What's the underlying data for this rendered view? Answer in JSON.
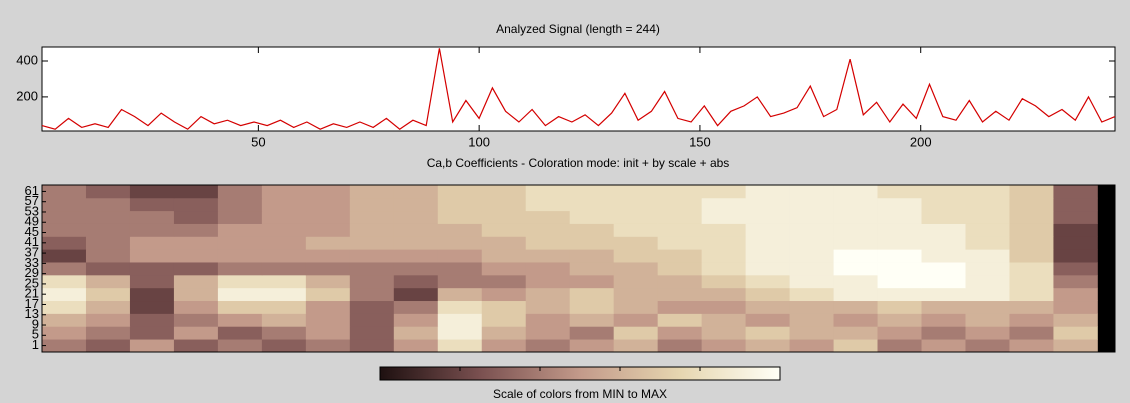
{
  "chart_data": [
    {
      "type": "line",
      "title": "Analyzed Signal  (length = 244)",
      "color": "#d40000",
      "xlim": [
        1,
        244
      ],
      "ylim": [
        10,
        478
      ],
      "xticks": [
        50,
        100,
        150,
        200
      ],
      "yticks": [
        200,
        400
      ],
      "x": [
        1,
        4,
        7,
        10,
        13,
        16,
        19,
        22,
        25,
        28,
        31,
        34,
        37,
        40,
        43,
        46,
        49,
        52,
        55,
        58,
        61,
        64,
        67,
        70,
        73,
        76,
        79,
        82,
        85,
        88,
        91,
        94,
        97,
        100,
        103,
        106,
        109,
        112,
        115,
        118,
        121,
        124,
        127,
        130,
        133,
        136,
        139,
        142,
        145,
        148,
        151,
        154,
        157,
        160,
        163,
        166,
        169,
        172,
        175,
        178,
        181,
        184,
        187,
        190,
        193,
        196,
        199,
        202,
        205,
        208,
        211,
        214,
        217,
        220,
        223,
        226,
        229,
        232,
        235,
        238,
        241,
        244
      ],
      "values": [
        40,
        20,
        80,
        30,
        50,
        30,
        130,
        90,
        40,
        110,
        60,
        20,
        90,
        50,
        70,
        40,
        60,
        40,
        70,
        30,
        60,
        20,
        50,
        30,
        60,
        30,
        80,
        20,
        70,
        40,
        470,
        60,
        180,
        80,
        250,
        120,
        60,
        130,
        40,
        90,
        60,
        100,
        40,
        110,
        220,
        70,
        120,
        230,
        80,
        60,
        150,
        40,
        120,
        150,
        200,
        90,
        110,
        140,
        260,
        90,
        130,
        410,
        100,
        170,
        60,
        160,
        80,
        270,
        90,
        70,
        180,
        60,
        120,
        70,
        190,
        150,
        90,
        130,
        70,
        200,
        60,
        90
      ]
    },
    {
      "type": "heatmap",
      "title": "Ca,b Coefficients - Coloration mode: init + by scale + abs",
      "xlim": [
        0,
        244
      ],
      "ylim": [
        -1.5,
        63.5
      ],
      "yticks": [
        1,
        5,
        9,
        13,
        17,
        21,
        25,
        29,
        33,
        37,
        41,
        45,
        49,
        53,
        57,
        61
      ],
      "x": [
        5,
        15,
        25,
        35,
        45,
        55,
        65,
        75,
        85,
        95,
        105,
        115,
        125,
        135,
        145,
        155,
        165,
        175,
        185,
        195,
        205,
        215,
        225,
        235
      ],
      "scales": [
        1,
        6,
        11,
        16,
        21,
        26,
        31,
        36,
        41,
        46,
        51,
        56,
        61
      ],
      "colormap": [
        "#1e1010",
        "#7a5050",
        "#c39a8a",
        "#e6d6b0",
        "#fffff6"
      ],
      "colorbar_label": "Scale of colors from MIN to MAX",
      "z": [
        [
          0.4,
          0.3,
          0.5,
          0.3,
          0.4,
          0.3,
          0.4,
          0.3,
          0.5,
          0.8,
          0.5,
          0.4,
          0.5,
          0.6,
          0.4,
          0.5,
          0.6,
          0.5,
          0.7,
          0.4,
          0.5,
          0.4,
          0.5,
          0.6
        ],
        [
          0.5,
          0.4,
          0.3,
          0.5,
          0.3,
          0.4,
          0.5,
          0.3,
          0.6,
          0.9,
          0.6,
          0.5,
          0.4,
          0.7,
          0.5,
          0.6,
          0.7,
          0.6,
          0.6,
          0.5,
          0.4,
          0.5,
          0.4,
          0.7
        ],
        [
          0.6,
          0.5,
          0.3,
          0.4,
          0.5,
          0.6,
          0.5,
          0.3,
          0.5,
          0.9,
          0.7,
          0.5,
          0.6,
          0.5,
          0.7,
          0.6,
          0.5,
          0.6,
          0.5,
          0.6,
          0.5,
          0.6,
          0.5,
          0.6
        ],
        [
          0.8,
          0.6,
          0.2,
          0.5,
          0.7,
          0.7,
          0.5,
          0.3,
          0.4,
          0.8,
          0.7,
          0.6,
          0.7,
          0.6,
          0.5,
          0.5,
          0.6,
          0.6,
          0.6,
          0.7,
          0.6,
          0.6,
          0.6,
          0.5
        ],
        [
          0.9,
          0.7,
          0.2,
          0.6,
          0.9,
          0.9,
          0.7,
          0.4,
          0.2,
          0.6,
          0.5,
          0.6,
          0.7,
          0.6,
          0.6,
          0.6,
          0.7,
          0.8,
          0.9,
          0.9,
          0.9,
          0.9,
          0.8,
          0.5
        ],
        [
          0.8,
          0.6,
          0.3,
          0.6,
          0.8,
          0.8,
          0.6,
          0.4,
          0.3,
          0.4,
          0.4,
          0.5,
          0.5,
          0.6,
          0.6,
          0.7,
          0.8,
          0.9,
          0.9,
          1,
          1,
          0.9,
          0.8,
          0.4
        ],
        [
          0.4,
          0.3,
          0.3,
          0.3,
          0.4,
          0.4,
          0.4,
          0.4,
          0.4,
          0.4,
          0.5,
          0.5,
          0.6,
          0.6,
          0.7,
          0.8,
          0.9,
          0.9,
          1,
          1,
          1,
          0.9,
          0.8,
          0.3
        ],
        [
          0.2,
          0.4,
          0.5,
          0.5,
          0.5,
          0.5,
          0.5,
          0.5,
          0.5,
          0.5,
          0.6,
          0.6,
          0.6,
          0.7,
          0.7,
          0.8,
          0.9,
          0.9,
          1,
          1,
          0.9,
          0.9,
          0.7,
          0.2
        ],
        [
          0.3,
          0.4,
          0.5,
          0.5,
          0.5,
          0.5,
          0.6,
          0.6,
          0.6,
          0.6,
          0.6,
          0.7,
          0.7,
          0.7,
          0.8,
          0.8,
          0.9,
          0.9,
          0.9,
          0.9,
          0.9,
          0.8,
          0.7,
          0.2
        ],
        [
          0.4,
          0.4,
          0.4,
          0.4,
          0.5,
          0.5,
          0.5,
          0.6,
          0.6,
          0.6,
          0.7,
          0.7,
          0.7,
          0.8,
          0.8,
          0.8,
          0.9,
          0.9,
          0.9,
          0.9,
          0.9,
          0.8,
          0.7,
          0.2
        ],
        [
          0.4,
          0.4,
          0.4,
          0.3,
          0.4,
          0.5,
          0.5,
          0.6,
          0.6,
          0.7,
          0.7,
          0.7,
          0.8,
          0.8,
          0.8,
          0.9,
          0.9,
          0.9,
          0.9,
          0.9,
          0.8,
          0.8,
          0.7,
          0.3
        ],
        [
          0.4,
          0.4,
          0.3,
          0.3,
          0.4,
          0.5,
          0.5,
          0.6,
          0.6,
          0.7,
          0.7,
          0.8,
          0.8,
          0.8,
          0.8,
          0.9,
          0.9,
          0.9,
          0.9,
          0.9,
          0.8,
          0.8,
          0.7,
          0.3
        ],
        [
          0.4,
          0.3,
          0.2,
          0.2,
          0.4,
          0.5,
          0.5,
          0.6,
          0.6,
          0.7,
          0.7,
          0.8,
          0.8,
          0.8,
          0.8,
          0.8,
          0.9,
          0.9,
          0.9,
          0.8,
          0.8,
          0.8,
          0.7,
          0.3
        ]
      ]
    }
  ]
}
